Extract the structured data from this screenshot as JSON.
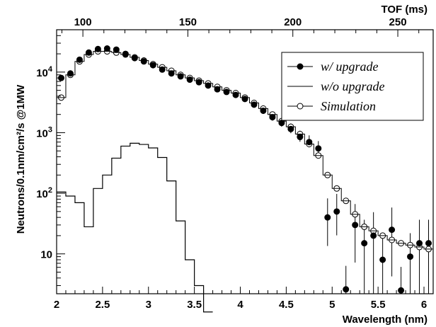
{
  "chart_data": {
    "type": "line",
    "xlabel": "Wavelength (nm)",
    "ylabel": "Neutrons/0.1nm/cm²/s @1MW",
    "top_axis_label": "TOF (ms)",
    "xlim": [
      2.0,
      6.1
    ],
    "ylim": [
      2.2,
      50000
    ],
    "y_scale": "log",
    "x_ticks": [
      2,
      2.5,
      3,
      3.5,
      4,
      4.5,
      5,
      5.5,
      6
    ],
    "x_tick_labels": [
      "2",
      "2.5",
      "3",
      "3.5",
      "4",
      "4.5",
      "5",
      "5.5",
      "6"
    ],
    "y_ticks": [
      10,
      100,
      1000,
      10000
    ],
    "top_ticks": [
      100,
      150,
      200,
      250
    ],
    "top_tick_labels": [
      "100",
      "150",
      "200",
      "250"
    ],
    "top_axis_conversion_wavelength_per_ms": 0.02286,
    "legend_position": "top-right",
    "series": [
      {
        "name": "w/ upgrade",
        "style": "filled-circle",
        "x": [
          2.05,
          2.15,
          2.25,
          2.35,
          2.45,
          2.55,
          2.65,
          2.75,
          2.85,
          2.95,
          3.05,
          3.15,
          3.25,
          3.35,
          3.45,
          3.55,
          3.65,
          3.75,
          3.85,
          3.95,
          4.05,
          4.15,
          4.25,
          4.35,
          4.45,
          4.55,
          4.65,
          4.75,
          4.85,
          4.95,
          5.05,
          5.15,
          5.25,
          5.35,
          5.45,
          5.55,
          5.65,
          5.75,
          5.85,
          5.95,
          6.05
        ],
        "y": [
          8000,
          9500,
          16000,
          21000,
          24000,
          24500,
          23500,
          20000,
          17000,
          15000,
          13000,
          11000,
          9500,
          8500,
          7500,
          6800,
          6000,
          5200,
          4700,
          4200,
          3600,
          2900,
          2300,
          1800,
          1450,
          1150,
          850,
          700,
          550,
          40,
          50,
          2.6,
          30,
          15,
          20,
          8,
          25,
          2.5,
          9,
          15,
          15
        ]
      },
      {
        "name": "w/o upgrade",
        "style": "step",
        "x": [
          2.05,
          2.15,
          2.25,
          2.35,
          2.45,
          2.55,
          2.65,
          2.75,
          2.85,
          2.95,
          3.05,
          3.15,
          3.25,
          3.35,
          3.45,
          3.55,
          3.65
        ],
        "y": [
          105,
          90,
          70,
          28,
          120,
          200,
          380,
          600,
          670,
          640,
          560,
          390,
          160,
          35,
          8,
          3,
          1
        ]
      },
      {
        "name": "Simulation",
        "style": "open-circle",
        "x": [
          2.05,
          2.15,
          2.25,
          2.35,
          2.45,
          2.55,
          2.65,
          2.75,
          2.85,
          2.95,
          3.05,
          3.15,
          3.25,
          3.35,
          3.45,
          3.55,
          3.65,
          3.75,
          3.85,
          3.95,
          4.05,
          4.15,
          4.25,
          4.35,
          4.45,
          4.55,
          4.65,
          4.75,
          4.85,
          4.95,
          5.05,
          5.15,
          5.25,
          5.35,
          5.45,
          5.55,
          5.65,
          5.75,
          5.85,
          5.95,
          6.05
        ],
        "y": [
          3800,
          9000,
          15000,
          19500,
          22000,
          22000,
          21000,
          19500,
          17500,
          15500,
          13500,
          12000,
          10500,
          9000,
          8000,
          7200,
          6500,
          5700,
          5000,
          4500,
          3800,
          3100,
          2500,
          2000,
          1550,
          1250,
          950,
          650,
          420,
          200,
          120,
          75,
          45,
          28,
          24,
          20,
          17,
          15,
          14,
          13,
          12
        ]
      }
    ]
  }
}
